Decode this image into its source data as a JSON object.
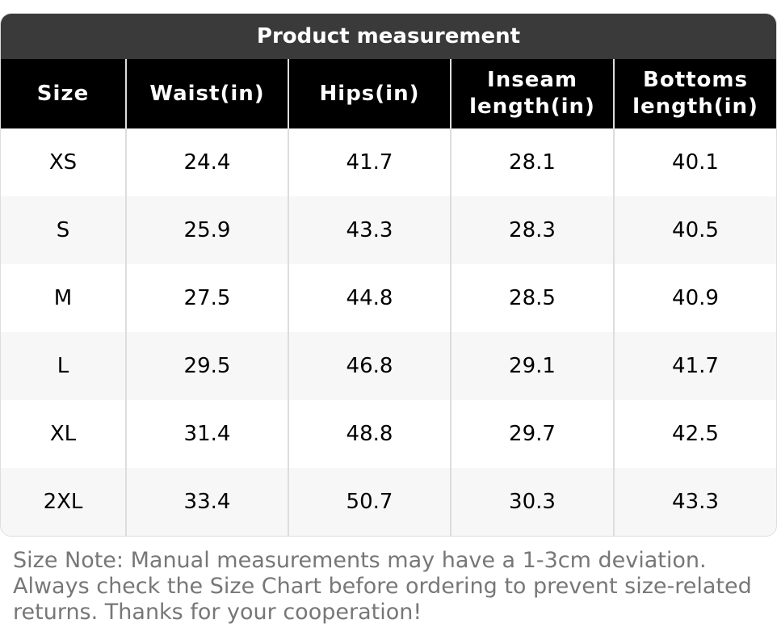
{
  "table": {
    "title": "Product measurement",
    "headers": [
      "Size",
      "Waist(in)",
      "Hips(in)",
      "Inseam length(in)",
      "Bottoms length(in)"
    ],
    "rows": [
      [
        "XS",
        "24.4",
        "41.7",
        "28.1",
        "40.1"
      ],
      [
        "S",
        "25.9",
        "43.3",
        "28.3",
        "40.5"
      ],
      [
        "M",
        "27.5",
        "44.8",
        "28.5",
        "40.9"
      ],
      [
        "L",
        "29.5",
        "46.8",
        "29.1",
        "41.7"
      ],
      [
        "XL",
        "31.4",
        "48.8",
        "29.7",
        "42.5"
      ],
      [
        "2XL",
        "33.4",
        "50.7",
        "30.3",
        "43.3"
      ]
    ]
  },
  "note": "Size Note: Manual measurements may have a 1-3cm deviation. Always check the Size Chart before ordering to prevent size-related returns. Thanks for your cooperation!"
}
